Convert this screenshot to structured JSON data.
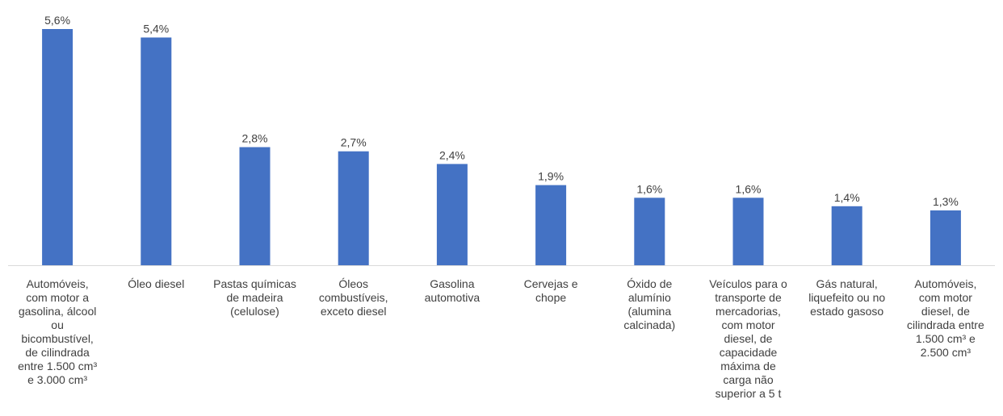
{
  "chart_data": {
    "type": "bar",
    "categories": [
      "Automóveis,\ncom motor a\ngasolina, álcool\nou\nbicombustível,\nde cilindrada\nentre 1.500 cm³\ne 3.000 cm³",
      "Óleo diesel",
      "Pastas químicas\nde madeira\n(celulose)",
      "Óleos\ncombustíveis,\nexceto diesel",
      "Gasolina\nautomotiva",
      "Cervejas e\nchope",
      "Óxido de\nalumínio\n(alumina\ncalcinada)",
      "Veículos para o\ntransporte de\nmercadorias,\ncom motor\ndiesel, de\ncapacidade\nmáxima de\ncarga não\nsuperior a 5 t",
      "Gás natural,\nliquefeito ou no\nestado gasoso",
      "Automóveis,\ncom motor\ndiesel, de\ncilindrada entre\n1.500 cm³  e\n2.500 cm³"
    ],
    "values": [
      5.6,
      5.4,
      2.8,
      2.7,
      2.4,
      1.9,
      1.6,
      1.6,
      1.4,
      1.3
    ],
    "value_labels": [
      "5,6%",
      "5,4%",
      "2,8%",
      "2,7%",
      "2,4%",
      "1,9%",
      "1,6%",
      "1,6%",
      "1,4%",
      "1,3%"
    ],
    "ylim": [
      0,
      5.6
    ],
    "grid": false,
    "legend": "none",
    "bar_color": "#4472C4",
    "axis_color": "#D9D9D9",
    "text_color": "#404040"
  }
}
